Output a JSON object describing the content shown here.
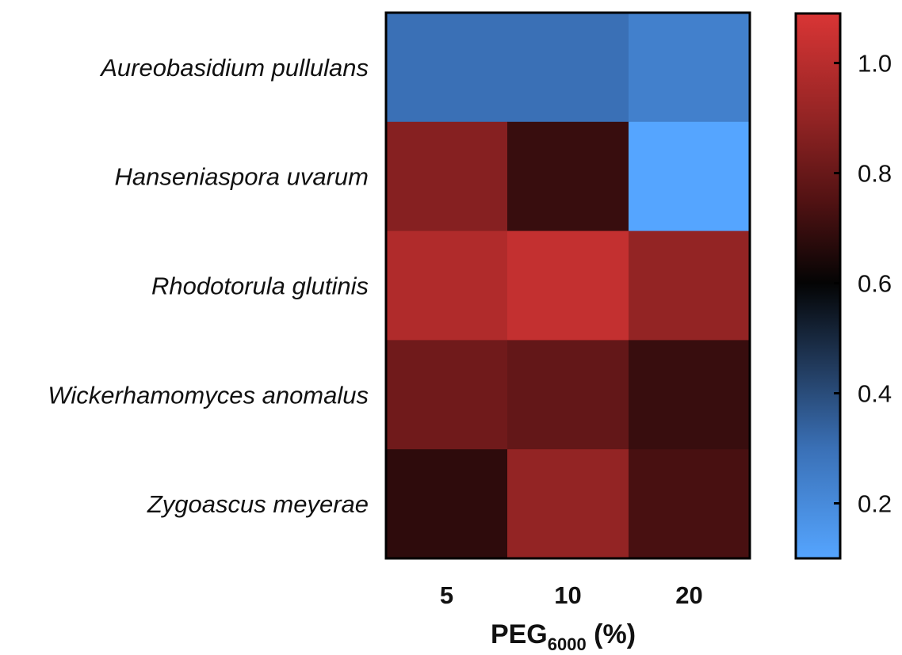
{
  "chart_data": {
    "type": "heatmap",
    "rows": [
      "Aureobasidium pullulans",
      "Hanseniaspora uvarum",
      "Rhodotorula glutinis",
      "Wickerhamomyces anomalus",
      "Zygoascus meyerae"
    ],
    "columns": [
      "5",
      "10",
      "20"
    ],
    "values": [
      [
        0.3,
        0.3,
        0.24
      ],
      [
        0.87,
        0.7,
        0.1
      ],
      [
        0.98,
        1.03,
        0.9
      ],
      [
        0.82,
        0.79,
        0.7
      ],
      [
        0.68,
        0.9,
        0.73
      ]
    ],
    "xlabel": {
      "main": "PEG",
      "subscript": "6000",
      "suffix": " (%)"
    },
    "colorbar": {
      "ticks": [
        0.2,
        0.4,
        0.6,
        0.8,
        1.0
      ],
      "tick_labels": [
        "0.2",
        "0.4",
        "0.6",
        "0.8",
        "1.0"
      ],
      "range": [
        0.1,
        1.09
      ],
      "stops": [
        {
          "value": 0.1,
          "color": "#55a5ff"
        },
        {
          "value": 0.3,
          "color": "#3a70b6"
        },
        {
          "value": 0.45,
          "color": "#213a5c"
        },
        {
          "value": 0.6,
          "color": "#040404"
        },
        {
          "value": 0.75,
          "color": "#521213"
        },
        {
          "value": 0.9,
          "color": "#932424"
        },
        {
          "value": 1.09,
          "color": "#d93535"
        }
      ]
    },
    "colors": {
      "frame": "#000000",
      "text": "#111111"
    }
  }
}
